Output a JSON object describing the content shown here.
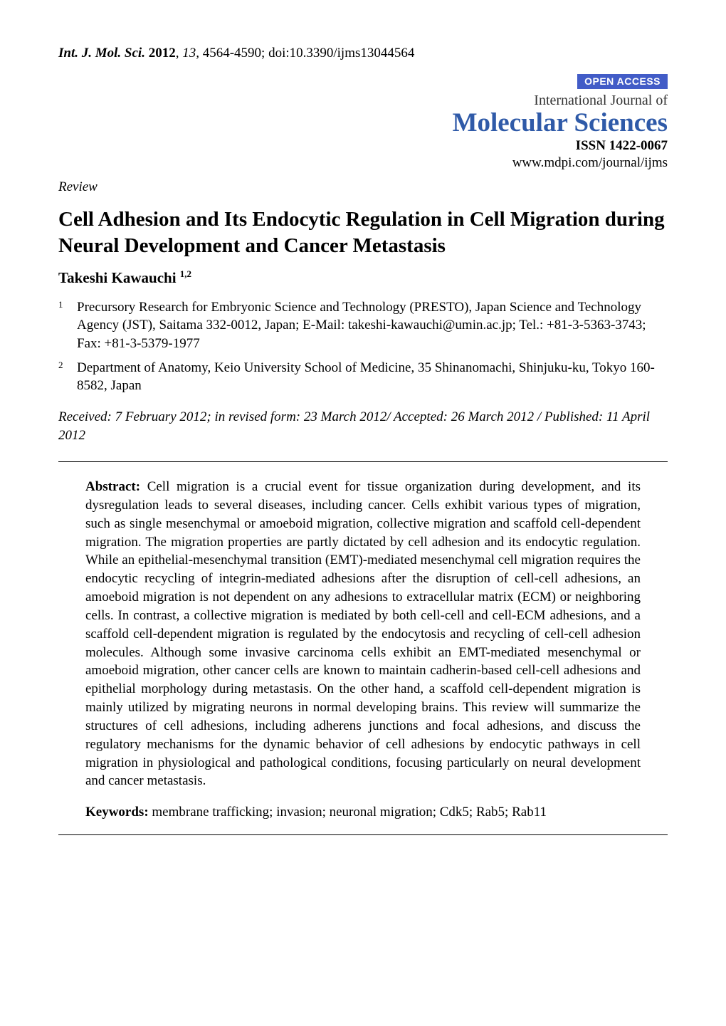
{
  "header": {
    "journal_abbrev": "Int. J. Mol. Sci.",
    "year": "2012",
    "volume_issue_pages": "13",
    "pages": "4564-4590;",
    "doi": "doi:10.3390/ijms13044564"
  },
  "masthead": {
    "open_access": "OPEN ACCESS",
    "ij_of": "International Journal of",
    "journal_name": "Molecular Sciences",
    "issn": "ISSN 1422-0067",
    "url": "www.mdpi.com/journal/ijms"
  },
  "article": {
    "type": "Review",
    "title": "Cell Adhesion and Its Endocytic Regulation in Cell Migration during Neural Development and Cancer Metastasis",
    "authors_name": "Takeshi Kawauchi",
    "authors_sup": "1,2",
    "affiliations": [
      {
        "num": "1",
        "text": "Precursory Research for Embryonic Science and Technology (PRESTO), Japan Science and Technology Agency (JST), Saitama 332-0012, Japan; E-Mail: takeshi-kawauchi@umin.ac.jp; Tel.: +81-3-5363-3743; Fax: +81-3-5379-1977"
      },
      {
        "num": "2",
        "text": "Department of Anatomy, Keio University School of Medicine, 35 Shinanomachi, Shinjuku-ku, Tokyo 160-8582, Japan"
      }
    ],
    "dates": "Received: 7 February 2012; in revised form: 23 March 2012/ Accepted: 26 March 2012 / Published: 11 April 2012"
  },
  "abstract": {
    "label": "Abstract:",
    "text": "Cell migration is a crucial event for tissue organization during development, and its dysregulation leads to several diseases, including cancer. Cells exhibit various types of migration, such as single mesenchymal or amoeboid migration, collective migration and scaffold cell-dependent migration. The migration properties are partly dictated by cell adhesion and its endocytic regulation. While an epithelial-mesenchymal transition (EMT)-mediated mesenchymal cell migration requires the endocytic recycling of integrin-mediated adhesions after the disruption of cell-cell adhesions, an amoeboid migration is not dependent on any adhesions to extracellular matrix (ECM) or neighboring cells. In contrast, a collective migration is mediated by both cell-cell and cell-ECM adhesions, and a scaffold cell-dependent migration is regulated by the endocytosis and recycling of cell-cell adhesion molecules. Although some invasive carcinoma cells exhibit an EMT-mediated mesenchymal or amoeboid migration, other cancer cells are known to maintain cadherin-based cell-cell adhesions and epithelial morphology during metastasis. On the other hand, a scaffold cell-dependent migration is mainly utilized by migrating neurons in normal developing brains. This review will summarize the structures of cell adhesions, including adherens junctions and focal adhesions, and discuss the regulatory mechanisms for the dynamic behavior of cell adhesions by endocytic pathways in cell migration in physiological and pathological conditions, focusing particularly on neural development and cancer metastasis."
  },
  "keywords": {
    "label": "Keywords:",
    "text": "membrane trafficking; invasion; neuronal migration; Cdk5; Rab5; Rab11"
  },
  "colors": {
    "open_access_bg": "#425cc7",
    "journal_name": "#2f5aa8",
    "text": "#000000",
    "bg": "#ffffff"
  },
  "fonts": {
    "body_pt": 19,
    "title_pt": 29,
    "journal_name_pt": 37
  }
}
